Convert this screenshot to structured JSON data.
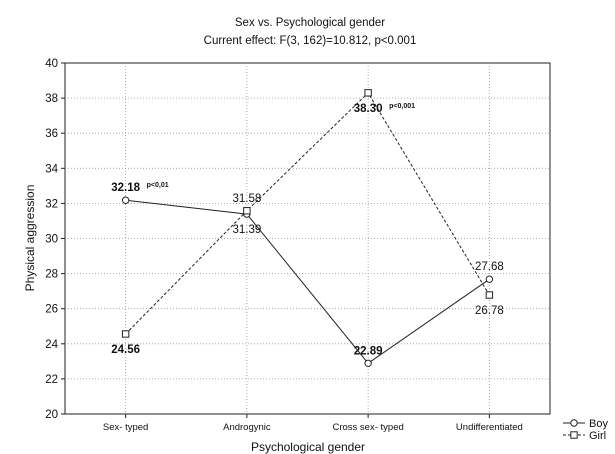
{
  "chart_data": {
    "type": "line",
    "title": "Sex vs. Psychological gender",
    "subtitle": "Current effect: F(3, 162)=10.812, p<0.001",
    "xlabel": "Psychological gender",
    "ylabel": "Physical aggression",
    "ylim": [
      20,
      40
    ],
    "yticks": [
      20,
      22,
      24,
      26,
      28,
      30,
      32,
      34,
      36,
      38,
      40
    ],
    "grid": true,
    "legend_position": "bottom-right",
    "categories": [
      "Sex- typed",
      "Androgynic",
      "Cross sex- typed",
      "Undifferentiated"
    ],
    "series": [
      {
        "name": "Boy",
        "marker": "circle",
        "line_style": "solid",
        "values": [
          32.18,
          31.39,
          22.89,
          27.68
        ],
        "labels": [
          "32.18",
          "31.39",
          "22.89",
          "27.68"
        ],
        "label_bold": [
          true,
          false,
          true,
          false
        ],
        "label_side": [
          "above",
          "below",
          "above",
          "above"
        ],
        "annotations": [
          "p<0,01",
          "",
          "",
          ""
        ]
      },
      {
        "name": "Girl",
        "marker": "square",
        "line_style": "dashed",
        "values": [
          24.56,
          31.58,
          38.3,
          26.78
        ],
        "labels": [
          "24.56",
          "31.58",
          "38.30",
          "26.78"
        ],
        "label_bold": [
          true,
          false,
          true,
          false
        ],
        "label_side": [
          "below",
          "above",
          "below",
          "below"
        ],
        "annotations": [
          "",
          "",
          "p<0,001",
          ""
        ]
      }
    ]
  }
}
